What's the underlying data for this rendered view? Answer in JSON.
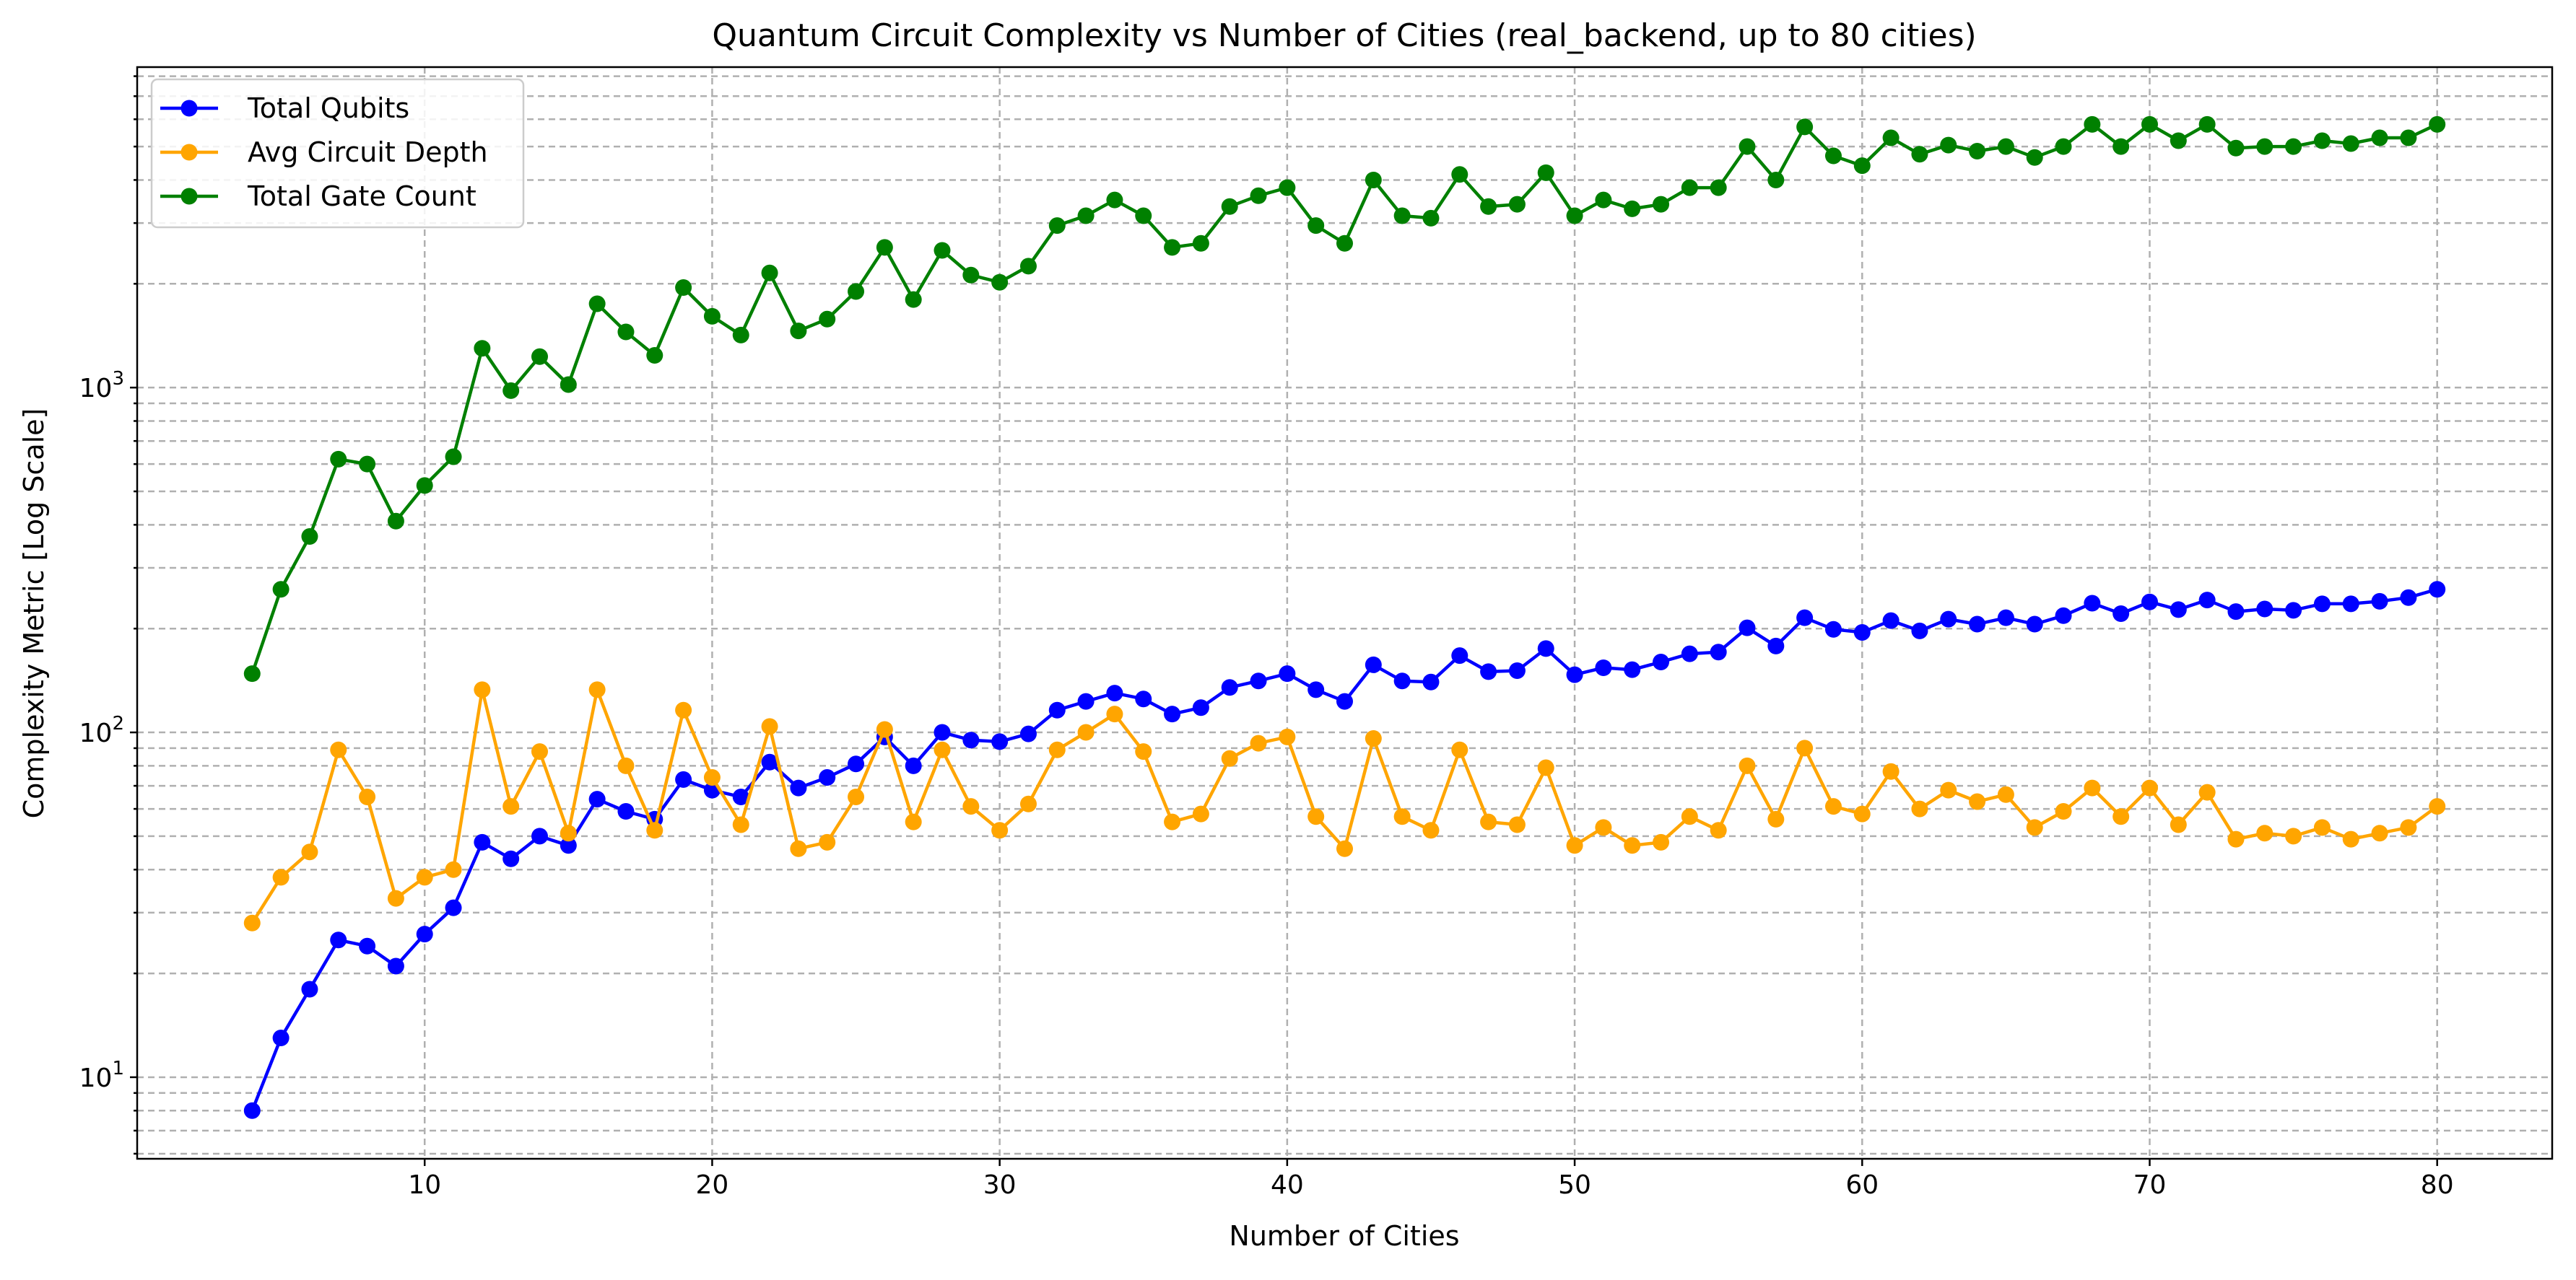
{
  "chart_data": {
    "type": "line",
    "title": "Quantum Circuit Complexity vs Number of Cities (real_backend, up to 80 cities)",
    "xlabel": "Number of Cities",
    "ylabel": "Complexity Metric [Log Scale]",
    "yscale": "log",
    "xlim": [
      0,
      84
    ],
    "ylim": [
      5.8,
      8500
    ],
    "xticks": [
      10,
      20,
      30,
      40,
      50,
      60,
      70,
      80
    ],
    "yticks": [
      {
        "value": 10,
        "base": "10",
        "exp": "1"
      },
      {
        "value": 100,
        "base": "10",
        "exp": "2"
      },
      {
        "value": 1000,
        "base": "10",
        "exp": "3"
      }
    ],
    "grid": true,
    "legend_position": "top-left",
    "x": [
      4,
      5,
      6,
      7,
      8,
      9,
      10,
      11,
      12,
      13,
      14,
      15,
      16,
      17,
      18,
      19,
      20,
      21,
      22,
      23,
      24,
      25,
      26,
      27,
      28,
      29,
      30,
      31,
      32,
      33,
      34,
      35,
      36,
      37,
      38,
      39,
      40,
      41,
      42,
      43,
      44,
      45,
      46,
      47,
      48,
      49,
      50,
      51,
      52,
      53,
      54,
      55,
      56,
      57,
      58,
      59,
      60,
      61,
      62,
      63,
      64,
      65,
      66,
      67,
      68,
      69,
      70,
      71,
      72,
      73,
      74,
      75,
      76,
      77,
      78,
      79,
      80
    ],
    "series": [
      {
        "name": "Total Qubits",
        "color": "#0000ff",
        "values": [
          8,
          13,
          18,
          25,
          24,
          21,
          26,
          31,
          48,
          43,
          50,
          47,
          64,
          59,
          56,
          73,
          68,
          65,
          82,
          69,
          74,
          81,
          97,
          80,
          100,
          95,
          94,
          99,
          116,
          123,
          130,
          125,
          113,
          118,
          135,
          141,
          148,
          133,
          123,
          157,
          141,
          140,
          167,
          150,
          151,
          175,
          147,
          154,
          152,
          160,
          169,
          171,
          201,
          178,
          215,
          199,
          195,
          211,
          197,
          213,
          206,
          215,
          206,
          218,
          237,
          221,
          239,
          227,
          242,
          224,
          228,
          226,
          236,
          236,
          240,
          246,
          260
        ]
      },
      {
        "name": "Avg Circuit Depth",
        "color": "#ffa500",
        "values": [
          28,
          38,
          45,
          89,
          65,
          33,
          38,
          40,
          133,
          61,
          88,
          51,
          133,
          80,
          52,
          116,
          74,
          54,
          104,
          46,
          48,
          65,
          102,
          55,
          89,
          61,
          52,
          62,
          89,
          100,
          113,
          88,
          55,
          58,
          84,
          93,
          97,
          57,
          46,
          96,
          57,
          52,
          89,
          55,
          54,
          79,
          47,
          53,
          47,
          48,
          57,
          52,
          80,
          56,
          90,
          61,
          58,
          77,
          60,
          68,
          63,
          66,
          53,
          59,
          69,
          57,
          69,
          54,
          67,
          49,
          51,
          50,
          53,
          49,
          51,
          53,
          61
        ]
      },
      {
        "name": "Total Gate Count",
        "color": "#008000",
        "values": [
          148,
          260,
          370,
          620,
          600,
          410,
          520,
          630,
          1300,
          980,
          1230,
          1020,
          1750,
          1450,
          1240,
          1950,
          1610,
          1420,
          2150,
          1460,
          1580,
          1900,
          2550,
          1800,
          2500,
          2120,
          2020,
          2250,
          2950,
          3150,
          3500,
          3150,
          2550,
          2620,
          3350,
          3600,
          3800,
          2950,
          2620,
          4000,
          3150,
          3100,
          4150,
          3350,
          3400,
          4200,
          3150,
          3500,
          3300,
          3400,
          3800,
          3800,
          5000,
          4000,
          5700,
          4700,
          4400,
          5300,
          4750,
          5050,
          4850,
          5000,
          4650,
          5000,
          5800,
          5000,
          5800,
          5200,
          5800,
          4950,
          5000,
          5000,
          5200,
          5100,
          5300,
          5300,
          5800
        ]
      }
    ]
  }
}
